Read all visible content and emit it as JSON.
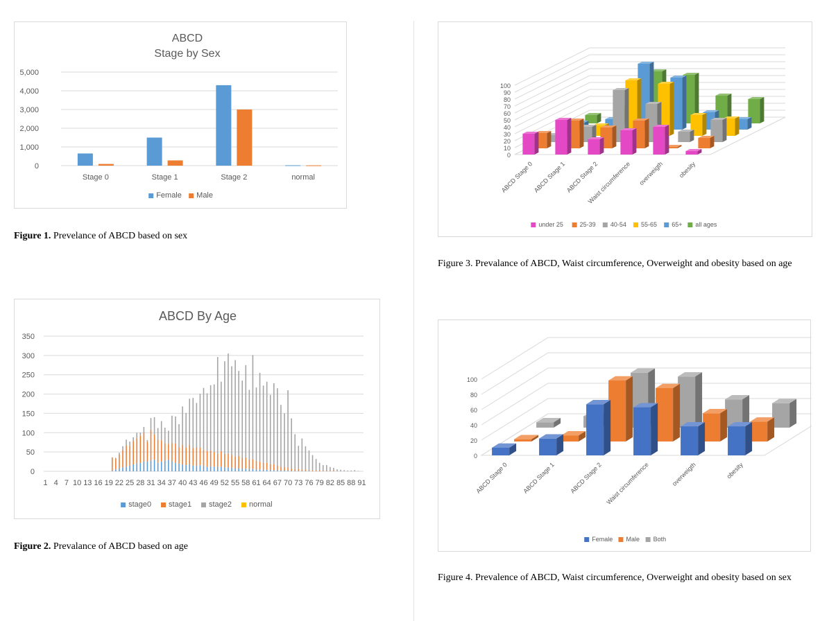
{
  "captions": {
    "fig1_label": "Figure 1.",
    "fig1_text": " Prevelance of ABCD based on sex",
    "fig2_label": "Figure 2.",
    "fig2_text": " Prevalance of ABCD based on age",
    "fig3_text": "Figure 3. Prevalance of ABCD, Waist circumference, Overweight and obesity based on age",
    "fig4_text": "Figure 4. Prevalence of ABCD, Waist circumference, Overweight and obesity based on sex"
  },
  "chart_data": [
    {
      "type": "bar",
      "title": "ABCD",
      "subtitle": "Stage by Sex",
      "categories": [
        "Stage 0",
        "Stage 1",
        "Stage 2",
        "normal"
      ],
      "series": [
        {
          "name": "Female",
          "color": "#5b9bd5",
          "values": [
            650,
            1500,
            4300,
            20
          ]
        },
        {
          "name": "Male",
          "color": "#ed7d31",
          "values": [
            90,
            280,
            3000,
            15
          ]
        }
      ],
      "ylim": [
        0,
        5000
      ],
      "yticks": [
        "0",
        "1,000",
        "2,000",
        "3,000",
        "4,000",
        "5,000"
      ],
      "ytick_values": [
        0,
        1000,
        2000,
        3000,
        4000,
        5000
      ],
      "legend": "bottom",
      "grid": true
    },
    {
      "type": "bar",
      "stacked": true,
      "title": "ABCD By Age",
      "xtick_labels": [
        "1",
        "4",
        "7",
        "10",
        "13",
        "16",
        "19",
        "22",
        "25",
        "28",
        "31",
        "34",
        "37",
        "40",
        "43",
        "46",
        "49",
        "52",
        "55",
        "58",
        "61",
        "64",
        "67",
        "70",
        "73",
        "76",
        "79",
        "82",
        "85",
        "88",
        "91"
      ],
      "ylim": [
        0,
        350
      ],
      "yticks": [
        "0",
        "50",
        "100",
        "150",
        "200",
        "250",
        "300",
        "350"
      ],
      "ytick_values": [
        0,
        50,
        100,
        150,
        200,
        250,
        300,
        350
      ],
      "ages_start": 1,
      "series": [
        {
          "name": "stage0",
          "color": "#5b9bd5",
          "values": [
            0,
            0,
            0,
            0,
            0,
            0,
            0,
            0,
            0,
            0,
            0,
            0,
            0,
            0,
            0,
            0,
            0,
            0,
            0,
            1,
            5,
            8,
            10,
            12,
            15,
            18,
            20,
            22,
            25,
            26,
            28,
            30,
            22,
            25,
            28,
            30,
            26,
            22,
            20,
            18,
            16,
            18,
            15,
            14,
            16,
            14,
            12,
            13,
            12,
            11,
            12,
            10,
            10,
            9,
            8,
            8,
            7,
            7,
            6,
            6,
            5,
            5,
            4,
            4,
            3,
            3,
            3,
            2,
            2,
            2,
            1,
            1,
            1,
            1,
            1,
            1,
            0,
            0,
            0,
            0,
            0,
            0,
            0,
            0,
            0,
            0,
            0,
            0,
            0,
            0,
            0
          ]
        },
        {
          "name": "stage1",
          "color": "#ed7d31",
          "values": [
            0,
            0,
            0,
            0,
            0,
            0,
            0,
            0,
            0,
            0,
            0,
            0,
            0,
            0,
            0,
            0,
            0,
            0,
            0,
            35,
            28,
            35,
            45,
            55,
            50,
            60,
            65,
            70,
            75,
            50,
            80,
            65,
            60,
            55,
            45,
            40,
            48,
            50,
            42,
            50,
            45,
            50,
            45,
            48,
            45,
            42,
            40,
            40,
            38,
            35,
            40,
            35,
            35,
            33,
            30,
            32,
            28,
            28,
            25,
            25,
            22,
            20,
            18,
            18,
            15,
            15,
            12,
            10,
            8,
            8,
            6,
            5,
            5,
            4,
            4,
            3,
            2,
            2,
            2,
            1,
            1,
            1,
            1,
            0,
            0,
            0,
            0,
            0,
            0,
            0,
            0
          ]
        },
        {
          "name": "stage2",
          "color": "#a5a5a5",
          "values": [
            0,
            0,
            0,
            0,
            0,
            0,
            0,
            0,
            0,
            0,
            0,
            0,
            0,
            0,
            0,
            0,
            0,
            0,
            0,
            0,
            2,
            5,
            10,
            15,
            12,
            10,
            15,
            8,
            15,
            5,
            30,
            45,
            30,
            50,
            40,
            35,
            70,
            70,
            60,
            100,
            90,
            120,
            130,
            115,
            140,
            160,
            150,
            170,
            175,
            250,
            180,
            240,
            260,
            230,
            250,
            220,
            200,
            240,
            180,
            270,
            190,
            230,
            200,
            210,
            180,
            210,
            200,
            160,
            140,
            200,
            130,
            90,
            60,
            80,
            60,
            50,
            40,
            30,
            20,
            15,
            15,
            10,
            8,
            5,
            4,
            3,
            2,
            2,
            3,
            1,
            0
          ]
        },
        {
          "name": "normal",
          "color": "#ffc000",
          "values": [
            0,
            0,
            0,
            0,
            0,
            0,
            0,
            0,
            0,
            0,
            0,
            0,
            0,
            0,
            0,
            0,
            0,
            0,
            0,
            0,
            0,
            0,
            0,
            0,
            0,
            0,
            0,
            0,
            0,
            0,
            0,
            0,
            0,
            0,
            0,
            0,
            0,
            0,
            0,
            0,
            0,
            0,
            0,
            0,
            0,
            0,
            0,
            0,
            0,
            0,
            0,
            0,
            0,
            0,
            0,
            0,
            0,
            0,
            0,
            0,
            0,
            0,
            0,
            0,
            0,
            0,
            0,
            0,
            0,
            0,
            0,
            0,
            0,
            0,
            0,
            0,
            0,
            0,
            0,
            0,
            0,
            0,
            0,
            0,
            0,
            0,
            0,
            0,
            0,
            0,
            0
          ]
        }
      ],
      "legend": "bottom",
      "grid": true
    },
    {
      "type": "bar",
      "variant": "3d-clustered",
      "categories": [
        "ABCD Stage 0",
        "ABCD Stage 1",
        "ABCD Stage 2",
        "Waist circumference",
        "overweigth",
        "obesity"
      ],
      "series": [
        {
          "name": "under 25",
          "color": "#e448c4",
          "values": [
            30,
            50,
            22,
            35,
            40,
            5
          ]
        },
        {
          "name": "25-39",
          "color": "#ed7d31",
          "values": [
            22,
            40,
            30,
            40,
            2,
            15
          ]
        },
        {
          "name": "40-54",
          "color": "#a5a5a5",
          "values": [
            10,
            22,
            75,
            55,
            15,
            32
          ]
        },
        {
          "name": "55-65",
          "color": "#ffc000",
          "values": [
            15,
            15,
            80,
            75,
            30,
            25
          ]
        },
        {
          "name": "65+",
          "color": "#5b9bd5",
          "values": [
            10,
            15,
            95,
            75,
            25,
            15
          ]
        },
        {
          "name": "all ages",
          "color": "#70ad47",
          "values": [
            12,
            22,
            75,
            70,
            40,
            35
          ]
        }
      ],
      "ylim": [
        0,
        100
      ],
      "yticks": [
        "0",
        "10",
        "20",
        "30",
        "40",
        "50",
        "60",
        "70",
        "80",
        "90",
        "100"
      ],
      "ytick_values": [
        0,
        10,
        20,
        30,
        40,
        50,
        60,
        70,
        80,
        90,
        100
      ],
      "legend": "bottom",
      "grid": true
    },
    {
      "type": "bar",
      "variant": "3d-clustered",
      "categories": [
        "ABCD Stage 0",
        "ABCD Stage 1",
        "ABCD Stage 2",
        "Waist circumference",
        "overweigth",
        "obesity"
      ],
      "series": [
        {
          "name": "Female",
          "color": "#4472c4",
          "values": [
            10,
            22,
            67,
            63,
            38,
            38
          ]
        },
        {
          "name": "Male",
          "color": "#ed7d31",
          "values": [
            3,
            8,
            80,
            70,
            37,
            26
          ]
        },
        {
          "name": "Both",
          "color": "#a5a5a5",
          "values": [
            7,
            15,
            72,
            67,
            37,
            32
          ]
        }
      ],
      "ylim": [
        0,
        100
      ],
      "yticks": [
        "0",
        "20",
        "40",
        "60",
        "80",
        "100"
      ],
      "ytick_values": [
        0,
        20,
        40,
        60,
        80,
        100
      ],
      "legend": "bottom",
      "grid": true
    }
  ]
}
